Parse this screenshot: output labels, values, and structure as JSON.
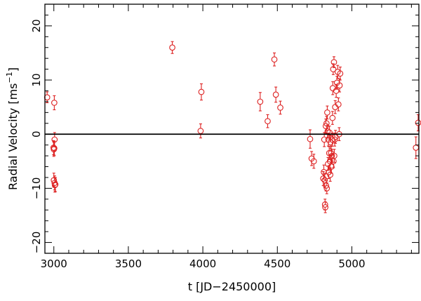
{
  "chart_data": {
    "type": "scatter",
    "title": "",
    "xlabel": "t [JD−2450000]",
    "ylabel_main": "Radial Velocity  [ms",
    "ylabel_sup": "−1",
    "ylabel_close": "]",
    "xlim": [
      2940,
      5450
    ],
    "ylim": [
      -22,
      24
    ],
    "xticks": [
      3000,
      3500,
      4000,
      4500,
      5000
    ],
    "xtick_labels": [
      "3000",
      "3500",
      "4000",
      "4500",
      "5000"
    ],
    "yticks": [
      -20,
      -10,
      0,
      10,
      20
    ],
    "ytick_labels": [
      "−20",
      "−10",
      "0",
      "10",
      "20"
    ],
    "reference_line_y": 0,
    "grid": false,
    "marker_color": "#dd2222",
    "series": [
      {
        "x": [
          2955,
          3003,
          3005,
          2998,
          3000,
          3003,
          3000,
          3005,
          3007,
          3010,
          3795,
          3985,
          3990,
          4385,
          4435,
          4480,
          4490,
          4520,
          4720,
          4730,
          4745,
          4808,
          4812,
          4815,
          4818,
          4820,
          4822,
          4825,
          4827,
          4830,
          4832,
          4835,
          4837,
          4840,
          4842,
          4845,
          4848,
          4850,
          4853,
          4855,
          4858,
          4860,
          4863,
          4866,
          4868,
          4870,
          4872,
          4875,
          4877,
          4880,
          4882,
          4885,
          4888,
          4890,
          4895,
          4900,
          4905,
          4910,
          4915,
          4918,
          4922,
          5430,
          5445
        ],
        "y": [
          6.8,
          5.8,
          -1.0,
          -2.5,
          -2.8,
          -2.6,
          -8.5,
          -9.0,
          -9.4,
          -9.3,
          16.0,
          0.6,
          7.8,
          6.0,
          2.4,
          13.8,
          7.3,
          4.9,
          -0.9,
          -4.5,
          -5.0,
          -8.2,
          -7.0,
          -1.0,
          -8.5,
          -13.0,
          -13.5,
          1.5,
          -9.5,
          2.0,
          -10.0,
          4.0,
          0.5,
          -5.5,
          -1.0,
          -7.0,
          -3.5,
          0.3,
          -5.0,
          -7.5,
          -1.5,
          -3.5,
          -6.0,
          -4.0,
          -1.0,
          3.0,
          8.5,
          12.0,
          -5.0,
          13.3,
          -4.0,
          -1.0,
          5.0,
          -0.5,
          8.0,
          9.5,
          11.5,
          5.5,
          0.0,
          9.0,
          11.2,
          -2.5,
          2.1
        ],
        "yerr": [
          1.0,
          1.3,
          1.3,
          1.3,
          1.3,
          1.3,
          1.3,
          1.3,
          1.3,
          1.3,
          1.1,
          1.3,
          1.5,
          1.7,
          1.2,
          1.2,
          1.4,
          1.2,
          1.7,
          1.3,
          1.3,
          1.3,
          1.3,
          1.3,
          1.3,
          1.0,
          1.0,
          1.3,
          1.0,
          1.3,
          1.0,
          1.2,
          1.2,
          1.2,
          1.2,
          1.2,
          1.2,
          1.2,
          1.2,
          1.2,
          1.2,
          1.2,
          1.2,
          1.2,
          1.2,
          1.2,
          1.2,
          1.0,
          1.2,
          1.0,
          1.2,
          1.2,
          1.2,
          1.2,
          1.2,
          1.2,
          1.2,
          1.2,
          1.2,
          1.2,
          1.2,
          2.0,
          1.5
        ]
      }
    ]
  }
}
